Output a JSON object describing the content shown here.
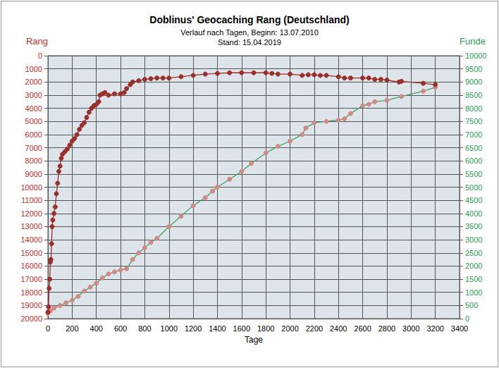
{
  "chart_data": {
    "type": "line",
    "title": "Doblinus' Geocaching Rang (Deutschland)",
    "subtitle": [
      "Verlauf nach Tagen, Beginn: 13.07.2010",
      "Stand: 15.04.2019"
    ],
    "xlabel": "Tage",
    "ylabel": "Rang",
    "y2label": "Funde",
    "xlim": [
      0,
      3400
    ],
    "xticks": [
      0,
      200,
      400,
      600,
      800,
      1000,
      1200,
      1400,
      1600,
      1800,
      2000,
      2200,
      2400,
      2600,
      2800,
      3000,
      3200,
      3400
    ],
    "ylim": [
      20000,
      0
    ],
    "yticks": [
      0,
      1000,
      2000,
      3000,
      4000,
      5000,
      6000,
      7000,
      8000,
      9000,
      10000,
      11000,
      12000,
      13000,
      14000,
      15000,
      16000,
      17000,
      18000,
      19000,
      20000
    ],
    "y2lim": [
      0,
      10000
    ],
    "y2ticks": [
      0,
      500,
      1000,
      1500,
      2000,
      2500,
      3000,
      3500,
      4000,
      4500,
      5000,
      5500,
      6000,
      6500,
      7000,
      7500,
      8000,
      8500,
      9000,
      9500,
      10000
    ],
    "grid": true,
    "series": [
      {
        "name": "Rang",
        "color": "#9b2f2b",
        "marker": "circle",
        "line_style": "solid",
        "x": [
          0,
          5,
          10,
          15,
          20,
          25,
          30,
          35,
          40,
          50,
          60,
          70,
          80,
          90,
          100,
          110,
          120,
          140,
          160,
          180,
          200,
          220,
          240,
          260,
          280,
          300,
          320,
          340,
          360,
          380,
          400,
          420,
          430,
          450,
          470,
          500,
          550,
          600,
          630,
          650,
          680,
          700,
          750,
          800,
          850,
          900,
          950,
          1000,
          1100,
          1200,
          1300,
          1400,
          1500,
          1600,
          1700,
          1800,
          1850,
          1900,
          2000,
          2100,
          2150,
          2200,
          2250,
          2300,
          2400,
          2450,
          2500,
          2600,
          2650,
          2700,
          2750,
          2800,
          2900,
          2920,
          3100,
          3200
        ],
        "values": [
          19500,
          19100,
          17700,
          17000,
          15700,
          15500,
          14300,
          13000,
          12500,
          12000,
          11500,
          10500,
          9700,
          8800,
          8400,
          7800,
          7500,
          7300,
          7100,
          6800,
          6500,
          6300,
          6000,
          5600,
          5300,
          5100,
          4700,
          4300,
          4000,
          3800,
          3700,
          3500,
          3000,
          2900,
          2800,
          3000,
          2900,
          2900,
          2800,
          2500,
          2200,
          2000,
          1900,
          1800,
          1750,
          1700,
          1700,
          1700,
          1600,
          1500,
          1400,
          1350,
          1300,
          1300,
          1300,
          1300,
          1350,
          1400,
          1400,
          1500,
          1450,
          1450,
          1500,
          1500,
          1600,
          1700,
          1700,
          1700,
          1700,
          1800,
          1800,
          1850,
          2000,
          1950,
          2100,
          2200
        ]
      },
      {
        "name": "Funde",
        "color": "#d48a82",
        "marker": "circle",
        "line_style": "solid",
        "axis": "y2",
        "x": [
          0,
          20,
          50,
          100,
          150,
          200,
          250,
          300,
          350,
          400,
          450,
          500,
          550,
          600,
          650,
          700,
          750,
          800,
          850,
          900,
          1000,
          1100,
          1200,
          1300,
          1360,
          1400,
          1500,
          1600,
          1680,
          1800,
          1900,
          2000,
          2100,
          2130,
          2200,
          2300,
          2400,
          2450,
          2500,
          2600,
          2650,
          2700,
          2800,
          2920,
          3100,
          3200
        ],
        "values": [
          200,
          300,
          400,
          500,
          600,
          700,
          850,
          1050,
          1200,
          1350,
          1550,
          1700,
          1780,
          1850,
          1900,
          2250,
          2500,
          2700,
          2900,
          3050,
          3500,
          3900,
          4300,
          4600,
          4850,
          5000,
          5300,
          5600,
          5900,
          6300,
          6550,
          6750,
          7000,
          7250,
          7450,
          7500,
          7550,
          7600,
          7800,
          8100,
          8150,
          8250,
          8300,
          8450,
          8650,
          8800
        ]
      }
    ]
  }
}
